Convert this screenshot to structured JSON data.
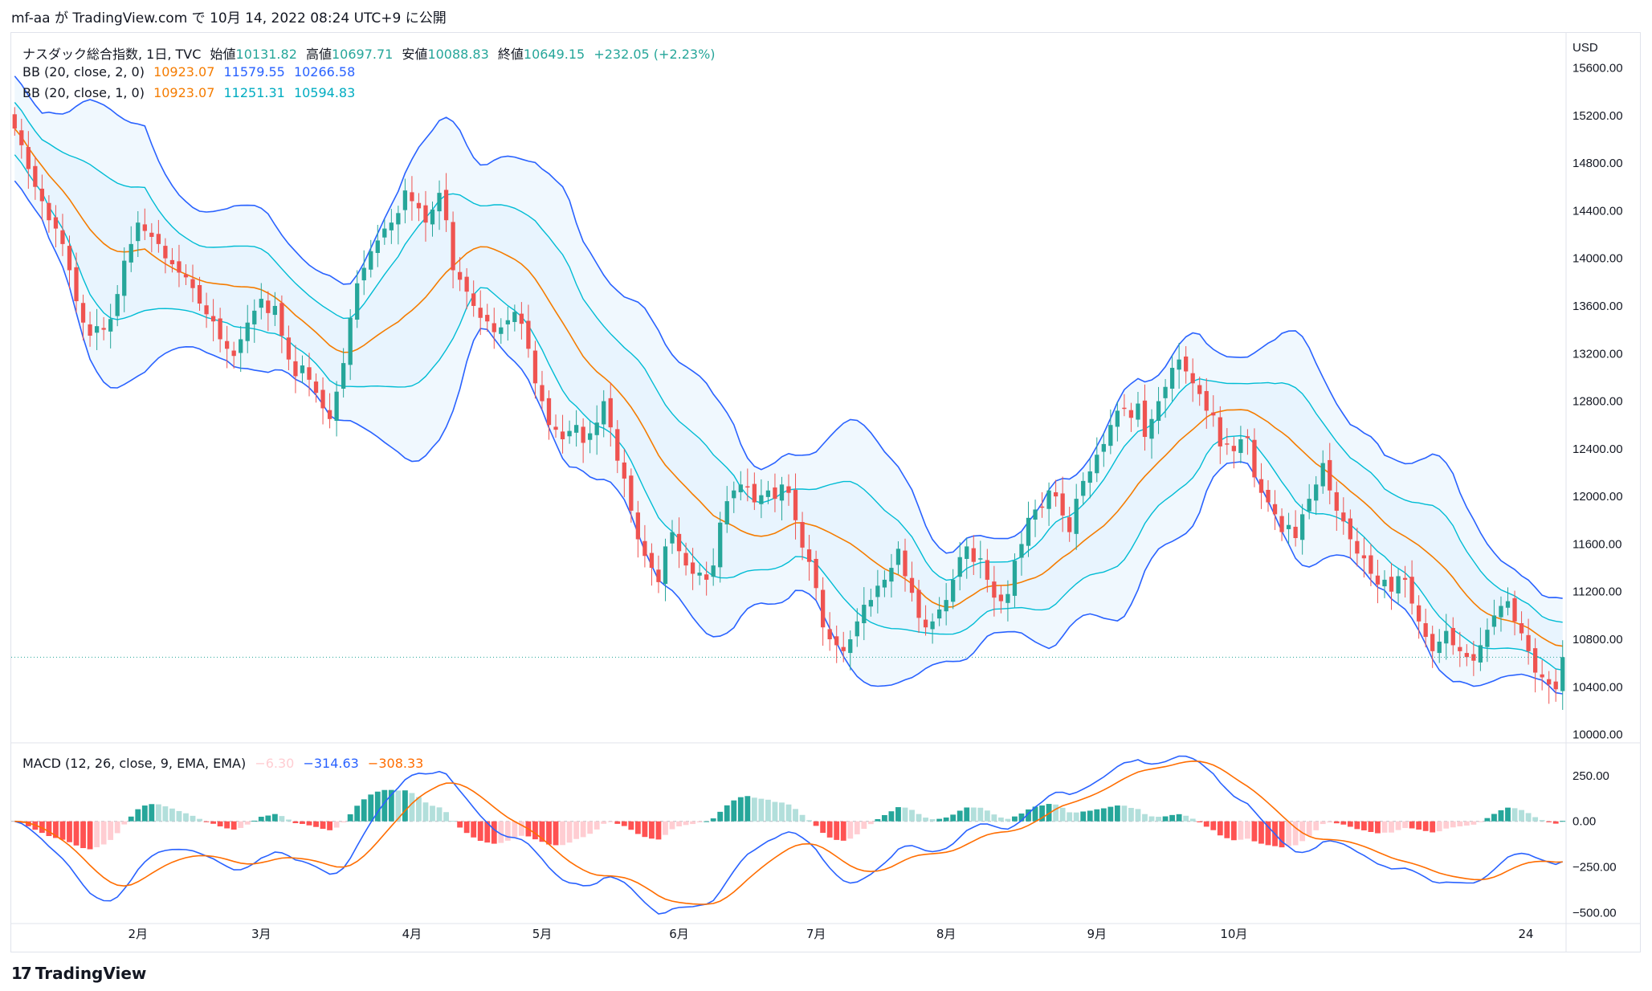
{
  "header": {
    "published_line": "mf-aa が TradingView.com で 10月 14, 2022 08:24 UTC+9 に公開"
  },
  "footer": {
    "logo_text": "TradingView",
    "logo_mark": "17"
  },
  "colors": {
    "up": "#26a69a",
    "down": "#ef5350",
    "bb2_upper": "#2962ff",
    "bb_basis": "#f57c00",
    "bb1_band": "#00bcd4",
    "band_fill": "#e3f2fd",
    "macd_line": "#2962ff",
    "signal_line": "#ff6d00",
    "hist_up_strong": "#26a69a",
    "hist_up_weak": "#b2dfdb",
    "hist_down_strong": "#ff5252",
    "hist_down_weak": "#ffcdd2"
  },
  "legend": {
    "symbol": "ナスダック総合指数, 1日, TVC",
    "open_label": "始値",
    "open": "10131.82",
    "high_label": "高値",
    "high": "10697.71",
    "low_label": "安値",
    "low": "10088.83",
    "close_label": "終値",
    "close": "10649.15",
    "change": "+232.05 (+2.23%)",
    "bb2_label": "BB (20, close, 2, 0)",
    "bb2_basis": "10923.07",
    "bb2_upper": "11579.55",
    "bb2_lower": "10266.58",
    "bb1_label": "BB (20, close, 1, 0)",
    "bb1_basis": "10923.07",
    "bb1_upper": "11251.31",
    "bb1_lower": "10594.83",
    "macd_label": "MACD (12, 26, close, 9, EMA, EMA)",
    "macd_hist": "−6.30",
    "macd": "−314.63",
    "macd_signal": "−308.33"
  },
  "chart_data": [
    {
      "type": "candlestick",
      "currency": "USD",
      "price_axis_ticks": [
        15600,
        15200,
        14800,
        14400,
        14000,
        13600,
        13200,
        12800,
        12400,
        12000,
        11600,
        11200,
        10800,
        10400,
        10000
      ],
      "price_axis_labels": [
        "15600.00",
        "15200.00",
        "14800.00",
        "14400.00",
        "14000.00",
        "13600.00",
        "13200.00",
        "12800.00",
        "12400.00",
        "12000.00",
        "11600.00",
        "11200.00",
        "10800.00",
        "10400.00",
        "10000.00"
      ],
      "ylim": [
        9930,
        15900
      ],
      "time_axis_labels": [
        "2月",
        "3月",
        "4月",
        "5月",
        "6月",
        "7月",
        "8月",
        "9月",
        "10月",
        "24"
      ],
      "last_price": 10649.15,
      "closes": [
        15090,
        14950,
        14750,
        14600,
        14480,
        14320,
        14250,
        14120,
        13900,
        13640,
        13460,
        13350,
        13430,
        13400,
        13490,
        13700,
        13980,
        14120,
        14300,
        14230,
        14180,
        14120,
        14000,
        13950,
        13880,
        13840,
        13750,
        13620,
        13530,
        13470,
        13320,
        13240,
        13180,
        13320,
        13460,
        13560,
        13660,
        13540,
        13600,
        13350,
        13150,
        13010,
        13100,
        12980,
        12870,
        12740,
        12650,
        12880,
        13120,
        13500,
        13790,
        13920,
        14060,
        14150,
        14250,
        14300,
        14380,
        14570,
        14480,
        14420,
        14300,
        14410,
        14550,
        14320,
        13900,
        13820,
        13720,
        13600,
        13500,
        13470,
        13380,
        13420,
        13480,
        13550,
        13450,
        13240,
        12950,
        12800,
        12600,
        12560,
        12480,
        12550,
        12600,
        12450,
        12530,
        12620,
        12800,
        12580,
        12300,
        12150,
        11880,
        11640,
        11500,
        11400,
        11280,
        11580,
        11700,
        11540,
        11420,
        11350,
        11360,
        11300,
        11420,
        11780,
        11960,
        12050,
        12100,
        12080,
        11950,
        12010,
        12050,
        11980,
        12100,
        12030,
        11800,
        11570,
        11450,
        11230,
        10900,
        10800,
        10750,
        10700,
        10800,
        10950,
        11090,
        11130,
        11250,
        11300,
        11400,
        11560,
        11330,
        11190,
        10980,
        10900,
        10950,
        11050,
        11130,
        11300,
        11490,
        11580,
        11450,
        11480,
        11300,
        11150,
        11120,
        11180,
        11460,
        11600,
        11820,
        11890,
        11910,
        12050,
        12000,
        11840,
        11700,
        11980,
        12130,
        12210,
        12350,
        12440,
        12600,
        12720,
        12740,
        12660,
        12780,
        12500,
        12650,
        12800,
        12920,
        13080,
        13150,
        13050,
        12950,
        12860,
        12720,
        12680,
        12420,
        12440,
        12380,
        12480,
        12490,
        12160,
        12030,
        11950,
        11850,
        11700,
        11760,
        11650,
        11850,
        11980,
        12100,
        12280,
        12050,
        11880,
        11790,
        11640,
        11520,
        11480,
        11350,
        11260,
        11300,
        11200,
        11330,
        11300,
        11100,
        10950,
        10820,
        10700,
        10780,
        10870,
        10750,
        10700,
        10650,
        10620,
        10750,
        10880,
        11000,
        11080,
        11120,
        10950,
        10850,
        10700,
        10520,
        10480,
        10420,
        10380,
        10650
      ]
    },
    {
      "type": "line",
      "name": "MACD (12, 26, close, 9, EMA, EMA)",
      "axis_ticks": [
        250,
        0,
        -250,
        -500
      ],
      "axis_labels": [
        "250.00",
        "0.00",
        "−250.00",
        "−500.00"
      ],
      "ylim": [
        -560,
        430
      ],
      "series": [
        "histogram",
        "macd",
        "signal"
      ]
    }
  ]
}
